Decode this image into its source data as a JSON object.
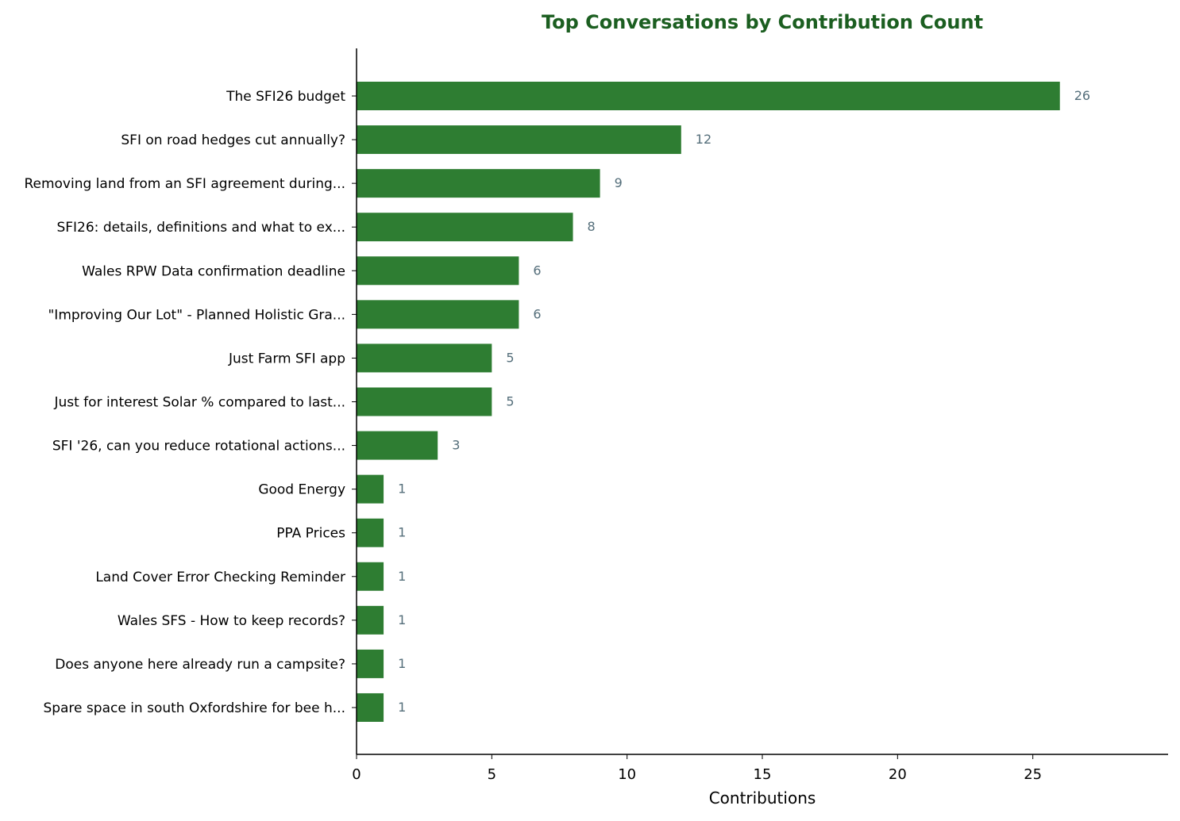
{
  "chart_data": {
    "type": "bar",
    "orientation": "horizontal",
    "title": "Top Conversations by Contribution Count",
    "xlabel": "Contributions",
    "ylabel": "",
    "xlim": [
      0,
      30
    ],
    "xticks": [
      0,
      5,
      10,
      15,
      20,
      25
    ],
    "grid": false,
    "legend": "none",
    "categories": [
      "The SFI26 budget",
      "SFI on road hedges cut annually?",
      "Removing land from an SFI agreement during...",
      "SFI26: details, definitions and what to ex...",
      "Wales RPW Data confirmation deadline",
      "\"Improving Our Lot\" - Planned Holistic Gra...",
      "Just Farm SFI app",
      "Just for interest Solar % compared to last...",
      "SFI '26, can you reduce rotational actions...",
      "Good Energy",
      "PPA Prices",
      "Land Cover Error Checking Reminder",
      "Wales SFS - How to keep records?",
      "Does anyone here already run a campsite?",
      "Spare space in south Oxfordshire for bee h..."
    ],
    "values": [
      26,
      12,
      9,
      8,
      6,
      6,
      5,
      5,
      3,
      1,
      1,
      1,
      1,
      1,
      1
    ],
    "colors": {
      "bar": "#2e7d32",
      "title": "#1b5e20",
      "value_label": "#546e7a",
      "axis": "#000000"
    }
  }
}
